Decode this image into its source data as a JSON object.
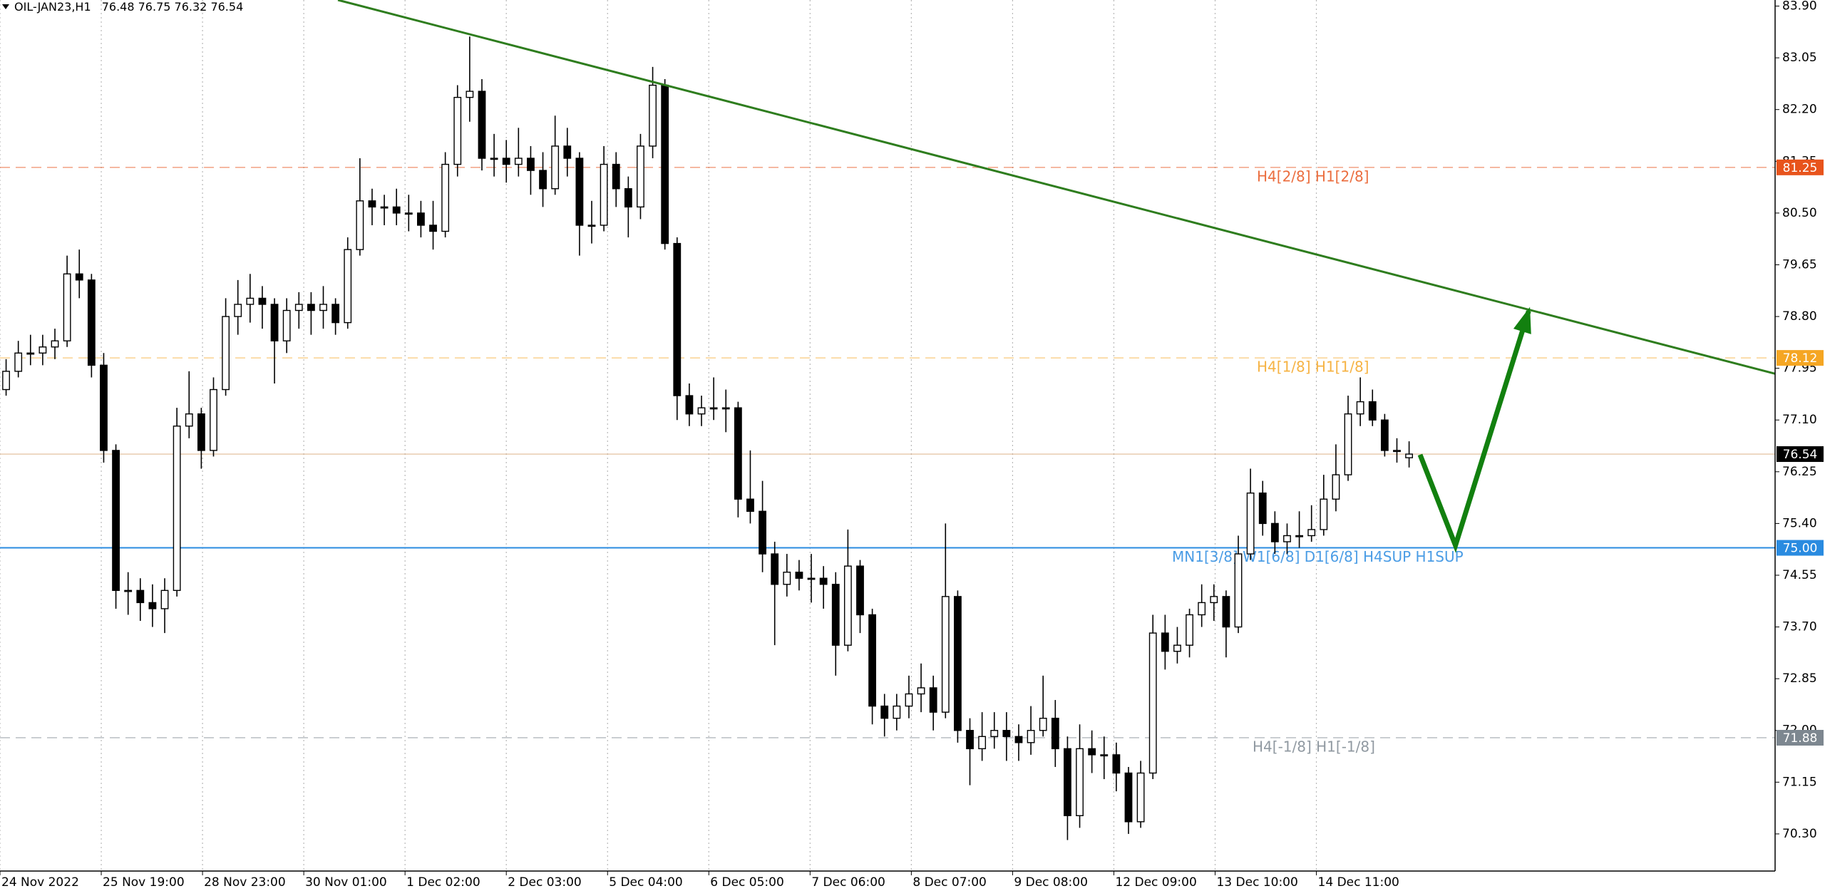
{
  "chart_data": {
    "type": "candlestick",
    "title": "OIL-JAN23,H1",
    "open": [
      77.6,
      77.9,
      78.2,
      78.2,
      78.3,
      78.4,
      79.5,
      79.4,
      78.0,
      76.6,
      74.3,
      74.3,
      74.1,
      74.0,
      74.3,
      77.0,
      77.2,
      76.6,
      77.6,
      78.8,
      79.0,
      79.1,
      79.0,
      78.4,
      78.9,
      79.0,
      78.9,
      79.0,
      78.7,
      79.9,
      80.7,
      80.6,
      80.6,
      80.5,
      80.5,
      80.3,
      80.2,
      81.3,
      82.4,
      82.5,
      81.4,
      81.4,
      81.3,
      81.4,
      81.2,
      80.9,
      81.6,
      81.4,
      80.3,
      80.3,
      81.3,
      80.9,
      80.6,
      81.6,
      82.6,
      80.0,
      77.5,
      77.2,
      77.3,
      77.3,
      77.3,
      75.8,
      75.6,
      74.9,
      74.4,
      74.6,
      74.5,
      74.5,
      74.4,
      73.4,
      74.7,
      73.9,
      72.4,
      72.2,
      72.4,
      72.6,
      72.7,
      72.3,
      74.2,
      72.0,
      71.7,
      71.9,
      72.0,
      71.9,
      71.8,
      72.0,
      72.2,
      71.7,
      70.6,
      71.7,
      71.6,
      71.6,
      71.3,
      70.5,
      71.3,
      73.6,
      73.3,
      73.4,
      73.9,
      74.1,
      74.2,
      73.7,
      74.9,
      75.9,
      75.4,
      75.1,
      75.2,
      75.2,
      75.3,
      75.8,
      76.2,
      77.2,
      77.4,
      77.1,
      76.6,
      76.48
    ],
    "high": [
      78.1,
      78.4,
      78.5,
      78.5,
      78.6,
      79.8,
      79.9,
      79.5,
      78.2,
      76.7,
      74.6,
      74.5,
      74.4,
      74.5,
      77.3,
      77.9,
      77.3,
      77.8,
      79.1,
      79.4,
      79.5,
      79.3,
      79.1,
      79.1,
      79.2,
      79.2,
      79.3,
      79.1,
      80.1,
      81.4,
      80.9,
      80.8,
      80.9,
      80.8,
      80.7,
      80.7,
      81.5,
      82.6,
      83.4,
      82.7,
      81.8,
      81.7,
      81.9,
      81.6,
      81.5,
      82.1,
      81.9,
      81.5,
      80.7,
      81.6,
      81.5,
      81.1,
      81.8,
      82.9,
      82.7,
      80.1,
      77.7,
      77.5,
      77.8,
      77.6,
      77.4,
      76.6,
      76.1,
      75.1,
      74.9,
      74.8,
      74.9,
      74.7,
      74.6,
      75.3,
      74.8,
      74.0,
      72.6,
      72.6,
      72.9,
      73.1,
      72.9,
      75.4,
      74.3,
      72.2,
      72.3,
      72.3,
      72.3,
      72.1,
      72.4,
      72.9,
      72.5,
      71.9,
      72.1,
      72.0,
      71.9,
      71.8,
      71.4,
      71.5,
      73.9,
      73.9,
      73.7,
      74.0,
      74.4,
      74.4,
      74.3,
      75.2,
      76.3,
      76.1,
      75.6,
      75.4,
      75.6,
      75.7,
      76.2,
      76.7,
      77.5,
      77.8,
      77.6,
      77.2,
      76.8,
      76.75
    ],
    "low": [
      77.5,
      77.8,
      78.0,
      78.0,
      78.1,
      78.3,
      79.1,
      77.8,
      76.4,
      74.0,
      73.9,
      73.8,
      73.7,
      73.6,
      74.2,
      76.8,
      76.3,
      76.5,
      77.5,
      78.5,
      78.7,
      78.6,
      77.7,
      78.2,
      78.6,
      78.5,
      78.6,
      78.5,
      78.6,
      79.8,
      80.3,
      80.3,
      80.3,
      80.2,
      80.1,
      79.9,
      80.1,
      81.1,
      82.0,
      81.2,
      81.1,
      81.0,
      81.1,
      80.8,
      80.6,
      80.8,
      81.1,
      79.8,
      80.0,
      80.2,
      80.6,
      80.1,
      80.4,
      81.4,
      79.9,
      77.1,
      77.0,
      77.0,
      77.1,
      76.9,
      75.5,
      75.4,
      74.6,
      73.4,
      74.2,
      74.3,
      74.1,
      74.0,
      72.9,
      73.3,
      73.6,
      72.1,
      71.9,
      72.0,
      72.2,
      72.3,
      72.0,
      72.2,
      71.8,
      71.1,
      71.5,
      71.7,
      71.5,
      71.5,
      71.6,
      71.9,
      71.4,
      70.2,
      70.4,
      71.3,
      71.2,
      71.0,
      70.3,
      70.4,
      71.2,
      73.0,
      73.1,
      73.2,
      73.7,
      73.8,
      73.2,
      73.6,
      74.8,
      75.2,
      74.9,
      74.9,
      75.0,
      75.1,
      75.2,
      75.6,
      76.1,
      77.0,
      77.0,
      76.5,
      76.4,
      76.32
    ],
    "close": [
      77.9,
      78.2,
      78.2,
      78.3,
      78.4,
      79.5,
      79.4,
      78.0,
      76.6,
      74.3,
      74.3,
      74.1,
      74.0,
      74.3,
      77.0,
      77.2,
      76.6,
      77.6,
      78.8,
      79.0,
      79.1,
      79.0,
      78.4,
      78.9,
      79.0,
      78.9,
      79.0,
      78.7,
      79.9,
      80.7,
      80.6,
      80.6,
      80.5,
      80.5,
      80.3,
      80.2,
      81.3,
      82.4,
      82.5,
      81.4,
      81.4,
      81.3,
      81.4,
      81.2,
      80.9,
      81.6,
      81.4,
      80.3,
      80.3,
      81.3,
      80.9,
      80.6,
      81.6,
      82.6,
      80.0,
      77.5,
      77.2,
      77.3,
      77.3,
      77.3,
      75.8,
      75.6,
      74.9,
      74.4,
      74.6,
      74.5,
      74.5,
      74.4,
      73.4,
      74.7,
      73.9,
      72.4,
      72.2,
      72.4,
      72.6,
      72.7,
      72.3,
      74.2,
      72.0,
      71.7,
      71.9,
      72.0,
      71.9,
      71.8,
      72.0,
      72.2,
      71.7,
      70.6,
      71.7,
      71.6,
      71.6,
      71.3,
      70.5,
      71.3,
      73.6,
      73.3,
      73.4,
      73.9,
      74.1,
      74.2,
      73.7,
      74.9,
      75.9,
      75.4,
      75.1,
      75.2,
      75.2,
      75.3,
      75.8,
      76.2,
      77.2,
      77.4,
      77.1,
      76.6,
      76.6,
      76.54
    ],
    "xlim": [
      0,
      145.5
    ],
    "xticks": [
      {
        "value": 0,
        "label": "24 Nov 2022"
      },
      {
        "value": 8.3,
        "label": "25 Nov 19:00"
      },
      {
        "value": 16.6,
        "label": "28 Nov 23:00"
      },
      {
        "value": 24.9,
        "label": "30 Nov 01:00"
      },
      {
        "value": 33.2,
        "label": "1 Dec 02:00"
      },
      {
        "value": 41.5,
        "label": "2 Dec 03:00"
      },
      {
        "value": 49.8,
        "label": "5 Dec 04:00"
      },
      {
        "value": 58.1,
        "label": "6 Dec 05:00"
      },
      {
        "value": 66.4,
        "label": "7 Dec 06:00"
      },
      {
        "value": 74.7,
        "label": "8 Dec 07:00"
      },
      {
        "value": 83.0,
        "label": "9 Dec 08:00"
      },
      {
        "value": 91.3,
        "label": "12 Dec 09:00"
      },
      {
        "value": 99.6,
        "label": "13 Dec 10:00"
      },
      {
        "value": 107.9,
        "label": "14 Dec 11:00"
      }
    ],
    "ylim": [
      69.69,
      84.0
    ],
    "yticks": [
      {
        "value": 83.9,
        "label": "83.90"
      },
      83.05,
      {
        "value": 82.2,
        "label": "82.20"
      },
      81.35,
      {
        "value": 80.5,
        "label": "80.50"
      },
      79.65,
      {
        "value": 78.8,
        "label": "78.80"
      },
      77.95,
      {
        "value": 77.1,
        "label": "77.10"
      },
      76.25,
      {
        "value": 75.4,
        "label": "75.40"
      },
      74.55,
      {
        "value": 73.7,
        "label": "73.70"
      },
      72.85,
      {
        "value": 72,
        "label": "72.00"
      },
      71.15,
      {
        "value": 70.3,
        "label": "70.30"
      }
    ],
    "grid": true,
    "levels": [
      {
        "name": "H4[2/8] H1[2/8]",
        "value": 81.25,
        "color": "#e8541c",
        "style": "dashed"
      },
      {
        "name": "H4[1/8] H1[1/8]",
        "value": 78.12,
        "color": "#f5a623",
        "style": "dashed"
      },
      {
        "name": "MN1[3/8] W1[6/8] D1[6/8] H4SUP H1SUP",
        "value": 75,
        "value_label": "75.00",
        "color": "#2a8be0",
        "style": "solid"
      },
      {
        "name": "H4[-1/8] H1[-1/8]",
        "value": 71.88,
        "color": "#7d8790",
        "style": "dashed"
      }
    ],
    "trendline": {
      "color": "#2e7d1e",
      "x": [
        27.7,
        145.5
      ],
      "y": [
        84.0,
        77.86
      ]
    },
    "arrow": {
      "color": "#12800f",
      "x": [
        116.4,
        119.3,
        125.3
      ],
      "y": [
        76.53,
        75.04,
        78.89
      ]
    }
  }
}
